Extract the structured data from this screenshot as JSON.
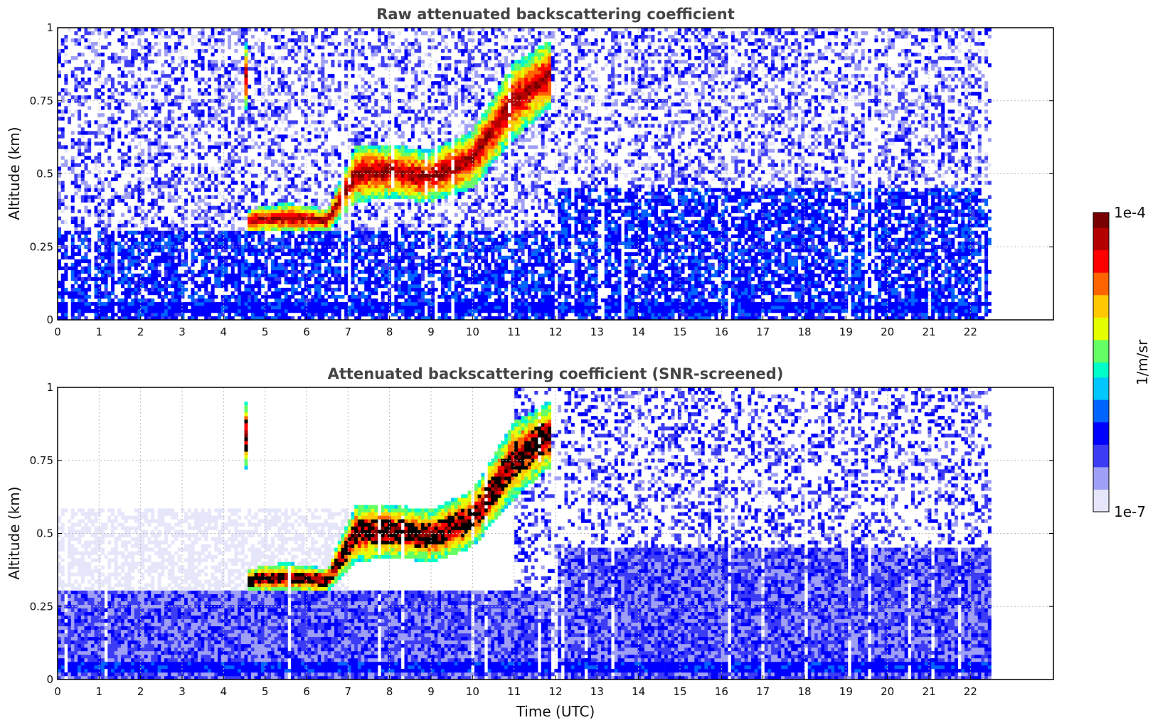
{
  "chart_data": [
    {
      "type": "heatmap",
      "title": "Raw attenuated backscattering coefficient",
      "xlabel": "",
      "ylabel": "Altitude (km)",
      "xlim": [
        0,
        24
      ],
      "ylim": [
        0,
        1
      ],
      "x_ticks": [
        0,
        1,
        2,
        3,
        4,
        5,
        6,
        7,
        8,
        9,
        10,
        11,
        12,
        13,
        14,
        15,
        16,
        17,
        18,
        19,
        20,
        21,
        22
      ],
      "y_ticks": [
        0,
        0.25,
        0.5,
        0.75,
        1
      ],
      "y_tick_labels": [
        "0",
        "0.25",
        "0.5",
        "0.75",
        "1"
      ],
      "grid": true,
      "data_end_time": 22.5,
      "features": {
        "surface_layer_altitude": [
          0.02,
          0.06
        ],
        "cloud_layer": [
          {
            "t": 4.6,
            "base": 0.3,
            "top": 0.38
          },
          {
            "t": 5.5,
            "base": 0.3,
            "top": 0.4
          },
          {
            "t": 6.5,
            "base": 0.3,
            "top": 0.38
          },
          {
            "t": 7.2,
            "base": 0.4,
            "top": 0.6
          },
          {
            "t": 8.0,
            "base": 0.42,
            "top": 0.6
          },
          {
            "t": 9.0,
            "base": 0.4,
            "top": 0.58
          },
          {
            "t": 10.0,
            "base": 0.45,
            "top": 0.65
          },
          {
            "t": 11.0,
            "base": 0.62,
            "top": 0.88
          },
          {
            "t": 11.8,
            "base": 0.72,
            "top": 0.95
          }
        ]
      }
    },
    {
      "type": "heatmap",
      "title": "Attenuated backscattering coefficient (SNR-screened)",
      "xlabel": "Time (UTC)",
      "ylabel": "Altitude (km)",
      "xlim": [
        0,
        24
      ],
      "ylim": [
        0,
        1
      ],
      "x_ticks": [
        0,
        1,
        2,
        3,
        4,
        5,
        6,
        7,
        8,
        9,
        10,
        11,
        12,
        13,
        14,
        15,
        16,
        17,
        18,
        19,
        20,
        21,
        22
      ],
      "y_ticks": [
        0,
        0.25,
        0.5,
        0.75,
        1
      ],
      "y_tick_labels": [
        "0",
        "0.25",
        "0.5",
        "0.75",
        "1"
      ],
      "grid": true,
      "data_end_time": 22.5
    }
  ],
  "colorbar": {
    "label": "1/m/sr",
    "max_label": "1e-4",
    "min_label": "1e-7",
    "scale": "log",
    "colormap": [
      "#e6e6fa",
      "#9f9ff5",
      "#3c3cf5",
      "#0000ff",
      "#0064ff",
      "#00c8ff",
      "#00ffc8",
      "#64ff64",
      "#e6ff00",
      "#ffc800",
      "#ff6400",
      "#ff0000",
      "#b40000",
      "#780000"
    ]
  },
  "colors": {
    "grid": "#bbbbbb",
    "frame": "#000000",
    "title": "#444444"
  }
}
